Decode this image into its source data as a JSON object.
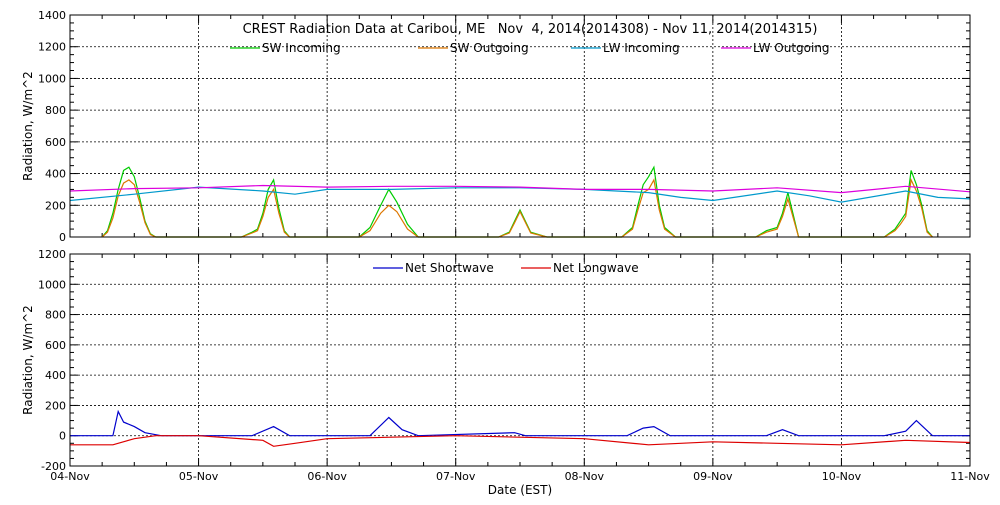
{
  "chart_data": [
    {
      "type": "line",
      "title": "CREST Radiation Data at Caribou, ME   Nov  4, 2014(2014308) - Nov 11, 2014(2014315)",
      "xlabel": "",
      "ylabel": "Radiation, W/m^2",
      "xlim": [
        "2014-11-04",
        "2014-11-11"
      ],
      "ylim": [
        0,
        1400
      ],
      "y_ticks": [
        0,
        200,
        400,
        600,
        800,
        1000,
        1200,
        1400
      ],
      "grid": true,
      "legend_position": "top",
      "series": [
        {
          "name": "SW Incoming",
          "color": "#00cc00",
          "x": [
            "2014-11-04 06:00",
            "2014-11-04 07:00",
            "2014-11-04 08:00",
            "2014-11-04 09:00",
            "2014-11-04 10:00",
            "2014-11-04 11:00",
            "2014-11-04 12:00",
            "2014-11-04 13:00",
            "2014-11-04 14:00",
            "2014-11-04 15:00",
            "2014-11-04 16:00",
            "2014-11-04 17:00",
            "2014-11-05 08:00",
            "2014-11-05 10:00",
            "2014-11-05 11:00",
            "2014-11-05 12:00",
            "2014-11-05 13:00",
            "2014-11-05 14:00",
            "2014-11-05 15:00",
            "2014-11-05 16:00",
            "2014-11-05 17:00",
            "2014-11-06 06:00",
            "2014-11-06 08:00",
            "2014-11-06 10:00",
            "2014-11-06 11:30",
            "2014-11-06 13:00",
            "2014-11-06 15:00",
            "2014-11-06 17:00",
            "2014-11-07 08:00",
            "2014-11-07 10:00",
            "2014-11-07 11:00",
            "2014-11-07 12:00",
            "2014-11-07 14:00",
            "2014-11-07 17:00",
            "2014-11-08 07:00",
            "2014-11-08 09:00",
            "2014-11-08 10:00",
            "2014-11-08 11:00",
            "2014-11-08 12:00",
            "2014-11-08 13:00",
            "2014-11-08 14:00",
            "2014-11-08 15:00",
            "2014-11-08 17:00",
            "2014-11-09 08:00",
            "2014-11-09 10:00",
            "2014-11-09 12:00",
            "2014-11-09 13:00",
            "2014-11-09 14:00",
            "2014-11-09 16:00",
            "2014-11-10 08:00",
            "2014-11-10 10:00",
            "2014-11-10 11:00",
            "2014-11-10 12:00",
            "2014-11-10 13:00",
            "2014-11-10 14:00",
            "2014-11-10 15:00",
            "2014-11-10 16:00",
            "2014-11-10 17:00"
          ],
          "y": [
            0,
            40,
            150,
            300,
            420,
            440,
            380,
            250,
            100,
            20,
            0,
            0,
            0,
            30,
            50,
            150,
            300,
            360,
            180,
            40,
            0,
            0,
            60,
            200,
            300,
            220,
            80,
            0,
            0,
            30,
            100,
            170,
            30,
            0,
            0,
            60,
            200,
            330,
            380,
            440,
            200,
            60,
            0,
            0,
            40,
            60,
            150,
            280,
            0,
            0,
            50,
            100,
            150,
            420,
            330,
            200,
            40,
            0
          ]
        },
        {
          "name": "SW Outgoing",
          "color": "#dd7700",
          "x": [
            "2014-11-04 06:00",
            "2014-11-04 07:00",
            "2014-11-04 08:00",
            "2014-11-04 09:00",
            "2014-11-04 10:00",
            "2014-11-04 11:00",
            "2014-11-04 12:00",
            "2014-11-04 13:00",
            "2014-11-04 14:00",
            "2014-11-04 15:00",
            "2014-11-04 16:00",
            "2014-11-04 17:00",
            "2014-11-05 08:00",
            "2014-11-05 10:00",
            "2014-11-05 11:00",
            "2014-11-05 12:00",
            "2014-11-05 13:00",
            "2014-11-05 14:00",
            "2014-11-05 15:00",
            "2014-11-05 16:00",
            "2014-11-05 17:00",
            "2014-11-06 06:00",
            "2014-11-06 08:00",
            "2014-11-06 10:00",
            "2014-11-06 11:30",
            "2014-11-06 13:00",
            "2014-11-06 15:00",
            "2014-11-06 17:00",
            "2014-11-07 08:00",
            "2014-11-07 10:00",
            "2014-11-07 11:00",
            "2014-11-07 12:00",
            "2014-11-07 14:00",
            "2014-11-07 17:00",
            "2014-11-08 07:00",
            "2014-11-08 09:00",
            "2014-11-08 10:00",
            "2014-11-08 11:00",
            "2014-11-08 12:00",
            "2014-11-08 13:00",
            "2014-11-08 14:00",
            "2014-11-08 15:00",
            "2014-11-08 17:00",
            "2014-11-09 08:00",
            "2014-11-09 10:00",
            "2014-11-09 12:00",
            "2014-11-09 13:00",
            "2014-11-09 14:00",
            "2014-11-09 16:00",
            "2014-11-10 08:00",
            "2014-11-10 10:00",
            "2014-11-10 11:00",
            "2014-11-10 12:00",
            "2014-11-10 13:00",
            "2014-11-10 14:00",
            "2014-11-10 15:00",
            "2014-11-10 16:00",
            "2014-11-10 17:00"
          ],
          "y": [
            0,
            30,
            120,
            260,
            340,
            360,
            330,
            220,
            90,
            15,
            0,
            0,
            0,
            25,
            40,
            130,
            250,
            300,
            150,
            30,
            0,
            0,
            40,
            150,
            200,
            160,
            50,
            0,
            0,
            25,
            90,
            160,
            25,
            0,
            0,
            50,
            170,
            280,
            300,
            360,
            170,
            50,
            0,
            0,
            30,
            50,
            130,
            240,
            0,
            0,
            40,
            80,
            130,
            360,
            290,
            180,
            30,
            0
          ]
        },
        {
          "name": "LW Incoming",
          "color": "#0099cc",
          "x": [
            "2014-11-04 00:00",
            "2014-11-04 12:00",
            "2014-11-05 00:00",
            "2014-11-05 12:00",
            "2014-11-05 18:00",
            "2014-11-06 00:00",
            "2014-11-06 12:00",
            "2014-11-07 00:00",
            "2014-11-07 12:00",
            "2014-11-08 00:00",
            "2014-11-08 12:00",
            "2014-11-08 18:00",
            "2014-11-09 00:00",
            "2014-11-09 12:00",
            "2014-11-09 18:00",
            "2014-11-10 00:00",
            "2014-11-10 12:00",
            "2014-11-10 18:00",
            "2014-11-11 00:00"
          ],
          "y": [
            230,
            270,
            315,
            290,
            270,
            300,
            300,
            310,
            310,
            300,
            280,
            250,
            230,
            290,
            260,
            220,
            290,
            250,
            240
          ]
        },
        {
          "name": "LW Outgoing",
          "color": "#dd00dd",
          "x": [
            "2014-11-04 00:00",
            "2014-11-04 12:00",
            "2014-11-05 00:00",
            "2014-11-05 12:00",
            "2014-11-06 00:00",
            "2014-11-06 12:00",
            "2014-11-07 00:00",
            "2014-11-07 12:00",
            "2014-11-08 00:00",
            "2014-11-08 12:00",
            "2014-11-09 00:00",
            "2014-11-09 12:00",
            "2014-11-10 00:00",
            "2014-11-10 12:00",
            "2014-11-11 00:00"
          ],
          "y": [
            290,
            305,
            310,
            325,
            315,
            320,
            320,
            315,
            300,
            300,
            290,
            310,
            280,
            320,
            285
          ]
        }
      ]
    },
    {
      "type": "line",
      "title": "",
      "xlabel": "Date (EST)",
      "ylabel": "Radiation, W/m^2",
      "xlim": [
        "2014-11-04",
        "2014-11-11"
      ],
      "ylim": [
        -200,
        1200
      ],
      "y_ticks": [
        -200,
        0,
        200,
        400,
        600,
        800,
        1000,
        1200
      ],
      "x_ticks": [
        "2014-11-04",
        "2014-11-05",
        "2014-11-06",
        "2014-11-07",
        "2014-11-08",
        "2014-11-09",
        "2014-11-10",
        "2014-11-11"
      ],
      "x_tick_labels": [
        "04-Nov",
        "05-Nov",
        "06-Nov",
        "07-Nov",
        "08-Nov",
        "09-Nov",
        "10-Nov",
        "11-Nov"
      ],
      "grid": true,
      "legend_position": "top",
      "series": [
        {
          "name": "Net Shortwave",
          "color": "#0000cc",
          "x": [
            "2014-11-04 00:00",
            "2014-11-04 08:00",
            "2014-11-04 09:00",
            "2014-11-04 10:00",
            "2014-11-04 12:00",
            "2014-11-04 14:00",
            "2014-11-04 17:00",
            "2014-11-05 10:00",
            "2014-11-05 14:00",
            "2014-11-05 17:00",
            "2014-11-06 08:00",
            "2014-11-06 11:30",
            "2014-11-06 14:00",
            "2014-11-06 17:00",
            "2014-11-07 11:00",
            "2014-11-07 13:00",
            "2014-11-08 08:00",
            "2014-11-08 11:00",
            "2014-11-08 13:00",
            "2014-11-08 16:00",
            "2014-11-09 10:00",
            "2014-11-09 13:00",
            "2014-11-09 16:00",
            "2014-11-10 08:00",
            "2014-11-10 12:00",
            "2014-11-10 14:00",
            "2014-11-10 17:00",
            "2014-11-11 00:00"
          ],
          "y": [
            0,
            0,
            160,
            90,
            60,
            20,
            0,
            0,
            60,
            0,
            0,
            120,
            40,
            0,
            20,
            0,
            0,
            50,
            60,
            0,
            0,
            40,
            0,
            0,
            30,
            100,
            0,
            0
          ]
        },
        {
          "name": "Net Longwave",
          "color": "#dd0000",
          "x": [
            "2014-11-04 00:00",
            "2014-11-04 08:00",
            "2014-11-04 12:00",
            "2014-11-04 16:00",
            "2014-11-05 00:00",
            "2014-11-05 12:00",
            "2014-11-05 14:00",
            "2014-11-05 18:00",
            "2014-11-06 00:00",
            "2014-11-06 12:00",
            "2014-11-07 00:00",
            "2014-11-08 00:00",
            "2014-11-08 12:00",
            "2014-11-09 00:00",
            "2014-11-09 12:00",
            "2014-11-10 00:00",
            "2014-11-10 12:00",
            "2014-11-11 00:00"
          ],
          "y": [
            -60,
            -60,
            -20,
            0,
            0,
            -30,
            -70,
            -50,
            -20,
            -10,
            0,
            -20,
            -60,
            -40,
            -50,
            -60,
            -30,
            -45
          ]
        }
      ]
    }
  ]
}
